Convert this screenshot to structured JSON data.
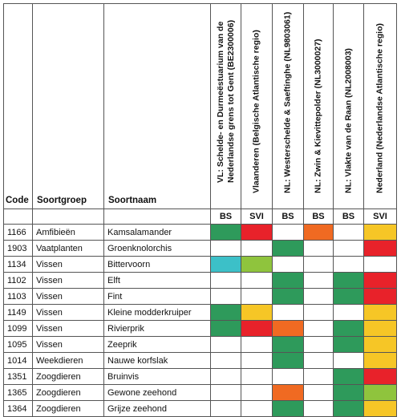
{
  "headers": {
    "code": "Code",
    "group": "Soortgroep",
    "name": "Soortnaam",
    "cols": [
      {
        "lines": [
          "VL: Schelde- en Durmeëstuarium van de",
          "Nederlandse grens tot Gent (BE2300006)"
        ],
        "sub": "BS"
      },
      {
        "lines": [
          "Vlaanderen (Belgische Atlantische regio)"
        ],
        "sub": "SVI"
      },
      {
        "lines": [
          "NL: Westerschelde & Saeftinghe (NL9803061)"
        ],
        "sub": "BS"
      },
      {
        "lines": [
          "NL: Zwin & Kievittepolder (NL3000027)"
        ],
        "sub": "BS"
      },
      {
        "lines": [
          "NL: Vlakte van de Raan (NL2008003)"
        ],
        "sub": "BS"
      },
      {
        "lines": [
          "Nederland (Nederlandse Atlantische regio)"
        ],
        "sub": "SVI"
      }
    ]
  },
  "colors": {
    "green": "#2e9a5b",
    "red": "#e8222a",
    "yellow": "#f6c626",
    "orange": "#f06a22",
    "cyan": "#3cc0c8",
    "lime": "#8fc43d",
    "white": "#ffffff"
  },
  "rows": [
    {
      "code": "1166",
      "group": "Amfibieën",
      "name": "Kamsalamander",
      "status": [
        "green",
        "red",
        "white",
        "orange",
        "white",
        "yellow"
      ]
    },
    {
      "code": "1903",
      "group": "Vaatplanten",
      "name": "Groenknolorchis",
      "status": [
        "white",
        "white",
        "green",
        "white",
        "white",
        "red"
      ]
    },
    {
      "code": "1134",
      "group": "Vissen",
      "name": "Bittervoorn",
      "status": [
        "cyan",
        "lime",
        "white",
        "white",
        "white",
        "white"
      ]
    },
    {
      "code": "1102",
      "group": "Vissen",
      "name": "Elft",
      "status": [
        "white",
        "white",
        "green",
        "white",
        "green",
        "red"
      ]
    },
    {
      "code": "1103",
      "group": "Vissen",
      "name": "Fint",
      "status": [
        "white",
        "white",
        "green",
        "white",
        "green",
        "red"
      ]
    },
    {
      "code": "1149",
      "group": "Vissen",
      "name": "Kleine modderkruiper",
      "status": [
        "green",
        "yellow",
        "white",
        "white",
        "white",
        "yellow"
      ]
    },
    {
      "code": "1099",
      "group": "Vissen",
      "name": "Rivierprik",
      "status": [
        "green",
        "red",
        "orange",
        "white",
        "green",
        "yellow"
      ]
    },
    {
      "code": "1095",
      "group": "Vissen",
      "name": "Zeeprik",
      "status": [
        "white",
        "white",
        "green",
        "white",
        "green",
        "yellow"
      ]
    },
    {
      "code": "1014",
      "group": "Weekdieren",
      "name": "Nauwe korfslak",
      "status": [
        "white",
        "white",
        "green",
        "white",
        "white",
        "yellow"
      ]
    },
    {
      "code": "1351",
      "group": "Zoogdieren",
      "name": "Bruinvis",
      "status": [
        "white",
        "white",
        "white",
        "white",
        "green",
        "red"
      ]
    },
    {
      "code": "1365",
      "group": "Zoogdieren",
      "name": "Gewone zeehond",
      "status": [
        "white",
        "white",
        "orange",
        "white",
        "green",
        "lime"
      ]
    },
    {
      "code": "1364",
      "group": "Zoogdieren",
      "name": "Grijze zeehond",
      "status": [
        "white",
        "white",
        "green",
        "white",
        "green",
        "yellow"
      ]
    }
  ]
}
